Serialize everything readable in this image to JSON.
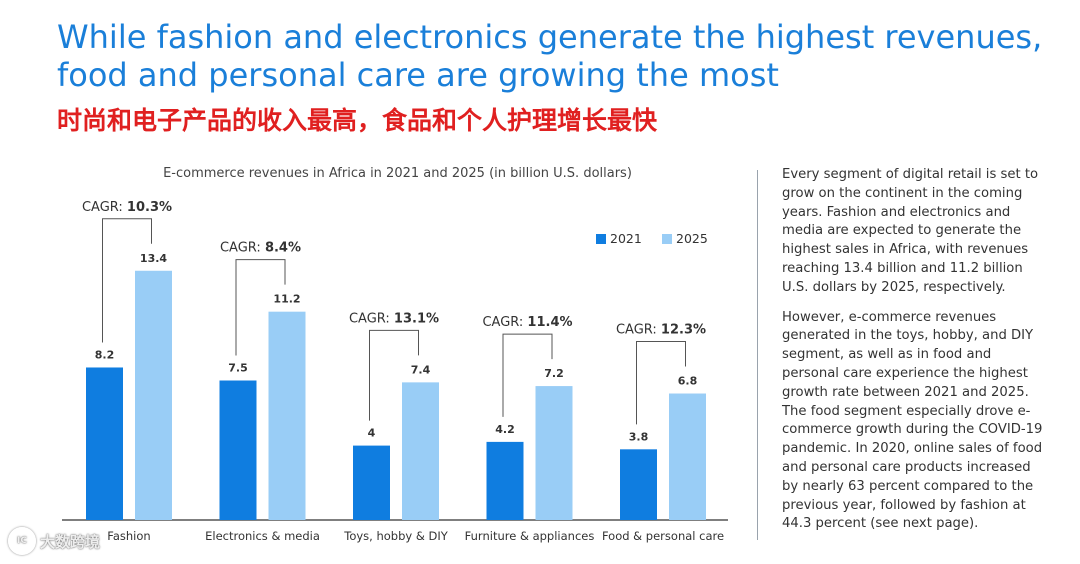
{
  "header": {
    "title": "While fashion and electronics generate the highest revenues, food and personal care are growing the most",
    "subtitle_cn": "时尚和电子产品的收入最高，食品和个人护理增长最快"
  },
  "chart_data": {
    "type": "bar",
    "title": "E-commerce revenues in Africa in 2021 and 2025 (in billion U.S. dollars)",
    "categories": [
      "Fashion",
      "Electronics & media",
      "Toys, hobby & DIY",
      "Furniture & appliances",
      "Food & personal care"
    ],
    "series": [
      {
        "name": "2021",
        "color": "#0f7de0",
        "values": [
          8.2,
          7.5,
          4,
          4.2,
          3.8
        ],
        "labels": [
          "8.2",
          "7.5",
          "4",
          "4.2",
          "3.8"
        ]
      },
      {
        "name": "2025",
        "color": "#99cdf6",
        "values": [
          13.4,
          11.2,
          7.4,
          7.2,
          6.8
        ],
        "labels": [
          "13.4",
          "11.2",
          "7.4",
          "7.2",
          "6.8"
        ]
      }
    ],
    "cagr_prefix": "CAGR: ",
    "cagr": [
      "10.3%",
      "8.4%",
      "13.1%",
      "11.4%",
      "12.3%"
    ],
    "legend_position": "top-right",
    "ylim": [
      0,
      16
    ],
    "grid": false,
    "xlabel": "",
    "ylabel": ""
  },
  "sidebar": {
    "paragraph1": "Every segment of digital retail is set to grow on the continent in the coming years. Fashion and electronics and media are expected to generate the highest sales in Africa, with revenues reaching 13.4 billion and 11.2 billion U.S. dollars by 2025, respectively.",
    "paragraph2": "However, e-commerce revenues generated in the toys, hobby, and DIY segment, as well as in food and personal care experience the highest growth rate between 2021 and 2025. The food segment especially drove e-commerce growth during the COVID-19 pandemic. In 2020, online sales of food and personal care products increased by nearly 63 percent compared to the previous year, followed by fashion at 44.3 percent (see next page)."
  },
  "watermark": {
    "logo_text": "IC",
    "text": "大数跨境"
  }
}
